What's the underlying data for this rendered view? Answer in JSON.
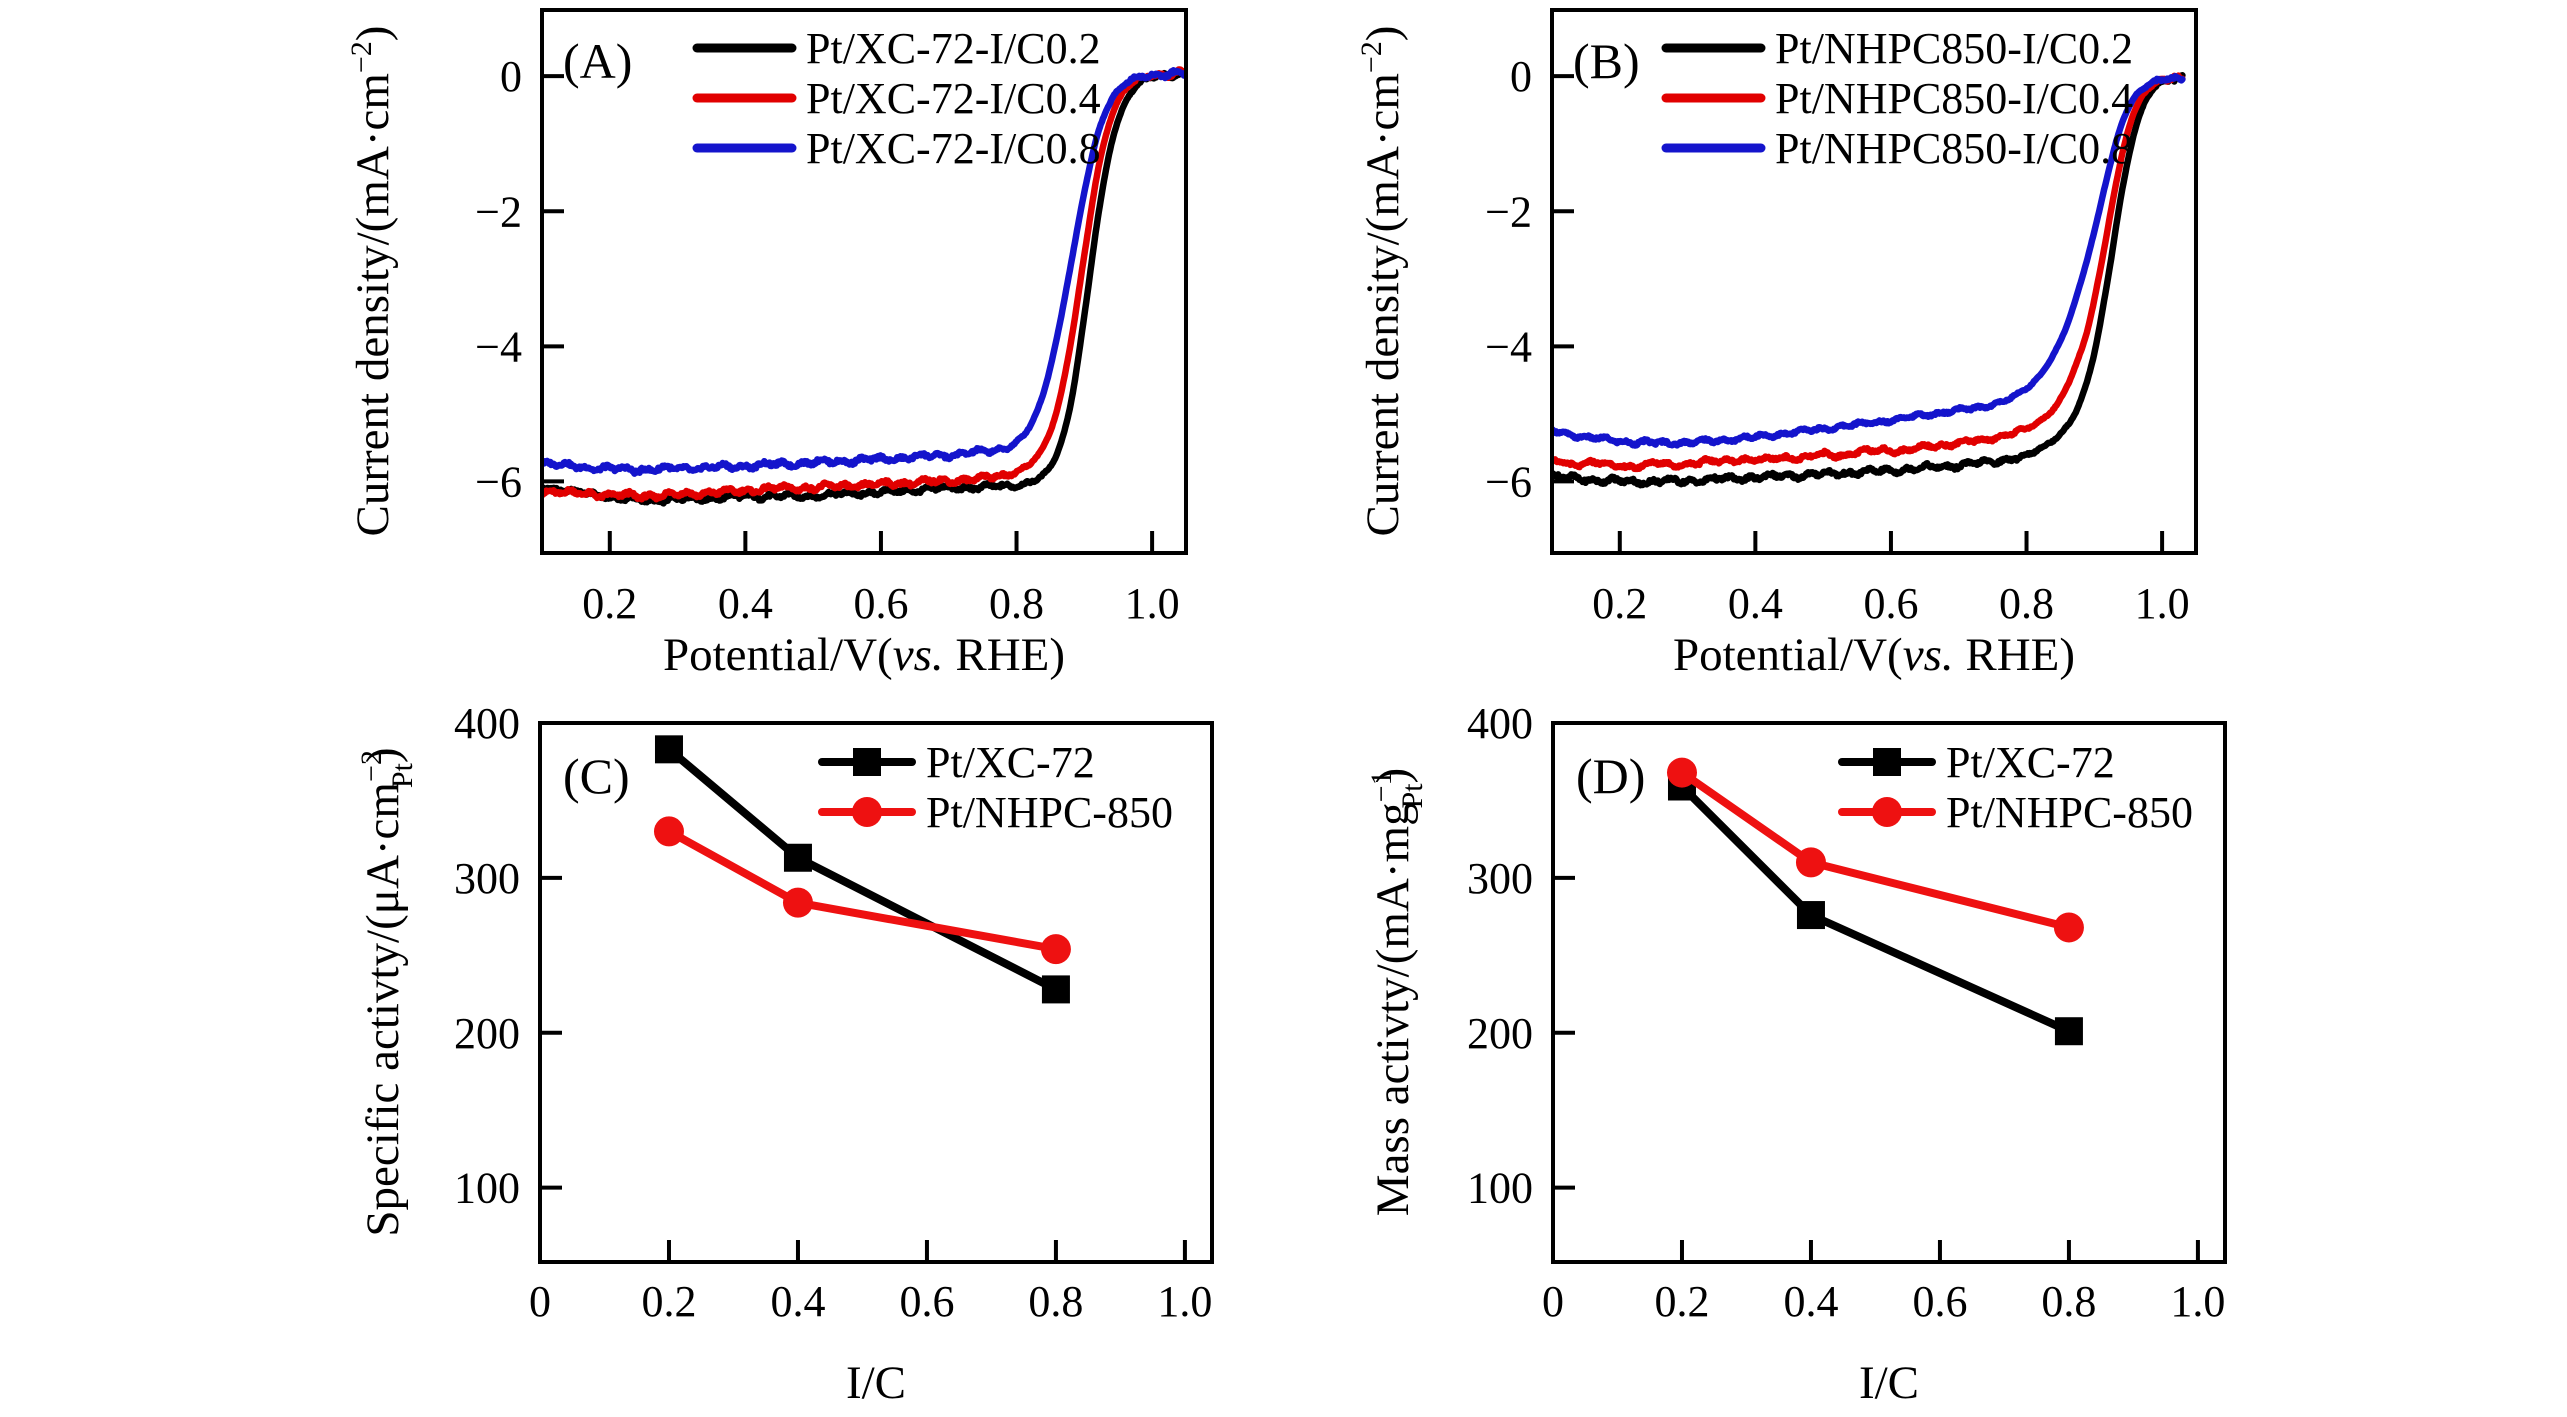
{
  "figure": {
    "background": "#ffffff",
    "description_colors": {
      "black": "#000000",
      "red_curve": "#e10000",
      "blue_curve": "#1414cc",
      "red_marker": "#ee1111"
    }
  },
  "chart_data": [
    {
      "id": "A",
      "type": "line",
      "panel_label": "(A)",
      "xlabel_parts": [
        {
          "t": "Potential/V("
        },
        {
          "t": "vs.",
          "style": "italic"
        },
        {
          "t": " RHE)"
        }
      ],
      "ylabel_parts": [
        {
          "t": "Current density/(mA·cm"
        },
        {
          "t": "−2",
          "style": "sup"
        },
        {
          "t": ")"
        }
      ],
      "xlim": [
        0.1,
        1.05
      ],
      "ylim": [
        -7.06,
        0.98
      ],
      "xticks": [
        0.2,
        0.4,
        0.6,
        0.8,
        1.0
      ],
      "xtick_labels": [
        "0.2",
        "0.4",
        "0.6",
        "0.8",
        "1.0"
      ],
      "yticks": [
        0,
        -2,
        -4,
        -6
      ],
      "ytick_labels": [
        "0",
        "−2",
        "−4",
        "−6"
      ],
      "grid": false,
      "legend_position": "top-left-inside",
      "series": [
        {
          "name": "Pt/XC-72-I/C0.2",
          "color": "#000000",
          "marker": "none",
          "noise": 0.045,
          "seed": 1,
          "points": [
            [
              0.1,
              -6.08
            ],
            [
              0.14,
              -6.14
            ],
            [
              0.18,
              -6.2
            ],
            [
              0.22,
              -6.26
            ],
            [
              0.26,
              -6.28
            ],
            [
              0.3,
              -6.26
            ],
            [
              0.34,
              -6.25
            ],
            [
              0.38,
              -6.23
            ],
            [
              0.42,
              -6.22
            ],
            [
              0.46,
              -6.22
            ],
            [
              0.5,
              -6.21
            ],
            [
              0.54,
              -6.19
            ],
            [
              0.58,
              -6.17
            ],
            [
              0.62,
              -6.15
            ],
            [
              0.66,
              -6.12
            ],
            [
              0.7,
              -6.1
            ],
            [
              0.74,
              -6.09
            ],
            [
              0.78,
              -6.07
            ],
            [
              0.8,
              -6.05
            ],
            [
              0.82,
              -6.01
            ],
            [
              0.84,
              -5.9
            ],
            [
              0.86,
              -5.58
            ],
            [
              0.88,
              -4.85
            ],
            [
              0.9,
              -3.55
            ],
            [
              0.92,
              -2.1
            ],
            [
              0.94,
              -1.0
            ],
            [
              0.96,
              -0.4
            ],
            [
              0.98,
              -0.12
            ],
            [
              1.0,
              -0.02
            ],
            [
              1.02,
              0.02
            ],
            [
              1.05,
              0.04
            ]
          ]
        },
        {
          "name": "Pt/XC-72-I/C0.4",
          "color": "#e10000",
          "marker": "none",
          "noise": 0.05,
          "seed": 2,
          "points": [
            [
              0.1,
              -6.14
            ],
            [
              0.14,
              -6.17
            ],
            [
              0.18,
              -6.19
            ],
            [
              0.22,
              -6.21
            ],
            [
              0.26,
              -6.21
            ],
            [
              0.3,
              -6.19
            ],
            [
              0.34,
              -6.17
            ],
            [
              0.38,
              -6.15
            ],
            [
              0.42,
              -6.12
            ],
            [
              0.46,
              -6.1
            ],
            [
              0.5,
              -6.09
            ],
            [
              0.54,
              -6.07
            ],
            [
              0.58,
              -6.05
            ],
            [
              0.62,
              -6.03
            ],
            [
              0.66,
              -6.01
            ],
            [
              0.7,
              -5.99
            ],
            [
              0.74,
              -5.96
            ],
            [
              0.78,
              -5.91
            ],
            [
              0.8,
              -5.85
            ],
            [
              0.82,
              -5.74
            ],
            [
              0.84,
              -5.48
            ],
            [
              0.86,
              -4.93
            ],
            [
              0.88,
              -3.95
            ],
            [
              0.9,
              -2.65
            ],
            [
              0.92,
              -1.4
            ],
            [
              0.94,
              -0.6
            ],
            [
              0.96,
              -0.2
            ],
            [
              0.98,
              -0.05
            ],
            [
              1.0,
              0.01
            ],
            [
              1.02,
              0.03
            ],
            [
              1.05,
              0.05
            ]
          ]
        },
        {
          "name": "Pt/XC-72-I/C0.8",
          "color": "#1414cc",
          "marker": "none",
          "noise": 0.05,
          "seed": 3,
          "points": [
            [
              0.1,
              -5.72
            ],
            [
              0.14,
              -5.77
            ],
            [
              0.18,
              -5.8
            ],
            [
              0.22,
              -5.82
            ],
            [
              0.26,
              -5.82
            ],
            [
              0.3,
              -5.81
            ],
            [
              0.34,
              -5.8
            ],
            [
              0.38,
              -5.78
            ],
            [
              0.42,
              -5.76
            ],
            [
              0.46,
              -5.74
            ],
            [
              0.5,
              -5.72
            ],
            [
              0.54,
              -5.7
            ],
            [
              0.58,
              -5.68
            ],
            [
              0.62,
              -5.66
            ],
            [
              0.66,
              -5.63
            ],
            [
              0.7,
              -5.61
            ],
            [
              0.74,
              -5.57
            ],
            [
              0.78,
              -5.51
            ],
            [
              0.8,
              -5.42
            ],
            [
              0.82,
              -5.18
            ],
            [
              0.84,
              -4.68
            ],
            [
              0.86,
              -3.85
            ],
            [
              0.88,
              -2.8
            ],
            [
              0.9,
              -1.72
            ],
            [
              0.92,
              -0.85
            ],
            [
              0.94,
              -0.35
            ],
            [
              0.96,
              -0.12
            ],
            [
              0.98,
              -0.02
            ],
            [
              1.0,
              0.02
            ],
            [
              1.02,
              0.03
            ],
            [
              1.05,
              0.04
            ]
          ]
        }
      ]
    },
    {
      "id": "B",
      "type": "line",
      "panel_label": "(B)",
      "xlabel_parts": [
        {
          "t": "Potential/V("
        },
        {
          "t": "vs.",
          "style": "italic"
        },
        {
          "t": " RHE)"
        }
      ],
      "ylabel_parts": [
        {
          "t": "Current density/(mA·cm"
        },
        {
          "t": "−2",
          "style": "sup"
        },
        {
          "t": ")"
        }
      ],
      "xlim": [
        0.1,
        1.05
      ],
      "ylim": [
        -7.06,
        0.98
      ],
      "xticks": [
        0.2,
        0.4,
        0.6,
        0.8,
        1.0
      ],
      "xtick_labels": [
        "0.2",
        "0.4",
        "0.6",
        "0.8",
        "1.0"
      ],
      "yticks": [
        0,
        -2,
        -4,
        -6
      ],
      "ytick_labels": [
        "0",
        "−2",
        "−4",
        "−6"
      ],
      "grid": false,
      "legend_position": "top-left-inside",
      "series": [
        {
          "name": "Pt/NHPC850-I/C0.2",
          "color": "#000000",
          "marker": "none",
          "noise": 0.05,
          "seed": 4,
          "points": [
            [
              0.1,
              -5.92
            ],
            [
              0.14,
              -5.96
            ],
            [
              0.18,
              -5.99
            ],
            [
              0.22,
              -6.0
            ],
            [
              0.26,
              -6.0
            ],
            [
              0.3,
              -5.99
            ],
            [
              0.34,
              -5.97
            ],
            [
              0.38,
              -5.95
            ],
            [
              0.42,
              -5.93
            ],
            [
              0.46,
              -5.91
            ],
            [
              0.5,
              -5.89
            ],
            [
              0.54,
              -5.87
            ],
            [
              0.58,
              -5.85
            ],
            [
              0.62,
              -5.82
            ],
            [
              0.66,
              -5.79
            ],
            [
              0.7,
              -5.76
            ],
            [
              0.74,
              -5.72
            ],
            [
              0.78,
              -5.66
            ],
            [
              0.8,
              -5.62
            ],
            [
              0.83,
              -5.45
            ],
            [
              0.86,
              -5.18
            ],
            [
              0.88,
              -4.8
            ],
            [
              0.9,
              -4.1
            ],
            [
              0.92,
              -3.0
            ],
            [
              0.94,
              -1.75
            ],
            [
              0.96,
              -0.8
            ],
            [
              0.98,
              -0.28
            ],
            [
              1.0,
              -0.08
            ],
            [
              1.03,
              -0.04
            ]
          ]
        },
        {
          "name": "Pt/NHPC850-I/C0.4",
          "color": "#e10000",
          "marker": "none",
          "noise": 0.045,
          "seed": 5,
          "points": [
            [
              0.1,
              -5.68
            ],
            [
              0.13,
              -5.76
            ],
            [
              0.16,
              -5.71
            ],
            [
              0.19,
              -5.77
            ],
            [
              0.22,
              -5.78
            ],
            [
              0.25,
              -5.73
            ],
            [
              0.28,
              -5.76
            ],
            [
              0.31,
              -5.72
            ],
            [
              0.34,
              -5.71
            ],
            [
              0.38,
              -5.67
            ],
            [
              0.41,
              -5.69
            ],
            [
              0.44,
              -5.64
            ],
            [
              0.47,
              -5.66
            ],
            [
              0.5,
              -5.6
            ],
            [
              0.53,
              -5.61
            ],
            [
              0.56,
              -5.56
            ],
            [
              0.59,
              -5.53
            ],
            [
              0.62,
              -5.55
            ],
            [
              0.65,
              -5.48
            ],
            [
              0.68,
              -5.46
            ],
            [
              0.71,
              -5.42
            ],
            [
              0.74,
              -5.38
            ],
            [
              0.77,
              -5.31
            ],
            [
              0.8,
              -5.22
            ],
            [
              0.83,
              -5.02
            ],
            [
              0.85,
              -4.78
            ],
            [
              0.87,
              -4.35
            ],
            [
              0.89,
              -3.75
            ],
            [
              0.91,
              -2.8
            ],
            [
              0.93,
              -1.7
            ],
            [
              0.95,
              -0.8
            ],
            [
              0.97,
              -0.3
            ],
            [
              0.99,
              -0.1
            ],
            [
              1.01,
              -0.05
            ],
            [
              1.03,
              -0.04
            ]
          ]
        },
        {
          "name": "Pt/NHPC850-I/C0.8",
          "color": "#1414cc",
          "marker": "none",
          "noise": 0.04,
          "seed": 6,
          "points": [
            [
              0.1,
              -5.25
            ],
            [
              0.14,
              -5.33
            ],
            [
              0.18,
              -5.38
            ],
            [
              0.22,
              -5.42
            ],
            [
              0.26,
              -5.43
            ],
            [
              0.3,
              -5.42
            ],
            [
              0.34,
              -5.4
            ],
            [
              0.38,
              -5.36
            ],
            [
              0.42,
              -5.32
            ],
            [
              0.46,
              -5.27
            ],
            [
              0.5,
              -5.22
            ],
            [
              0.54,
              -5.17
            ],
            [
              0.58,
              -5.12
            ],
            [
              0.62,
              -5.06
            ],
            [
              0.66,
              -5.0
            ],
            [
              0.7,
              -4.95
            ],
            [
              0.74,
              -4.88
            ],
            [
              0.77,
              -4.8
            ],
            [
              0.8,
              -4.62
            ],
            [
              0.82,
              -4.42
            ],
            [
              0.84,
              -4.12
            ],
            [
              0.86,
              -3.68
            ],
            [
              0.88,
              -3.05
            ],
            [
              0.9,
              -2.3
            ],
            [
              0.92,
              -1.45
            ],
            [
              0.94,
              -0.72
            ],
            [
              0.96,
              -0.3
            ],
            [
              0.98,
              -0.12
            ],
            [
              1.0,
              -0.06
            ],
            [
              1.03,
              -0.04
            ]
          ]
        }
      ]
    },
    {
      "id": "C",
      "type": "scatter-line",
      "panel_label": "(C)",
      "xlabel_parts": [
        {
          "t": "I/C"
        }
      ],
      "ylabel_parts": [
        {
          "t": "Specific activty/(μA·cm"
        },
        {
          "t": "−2",
          "style": "sup"
        },
        {
          "t": "Pt",
          "style": "substack"
        },
        {
          "t": ")"
        }
      ],
      "xlim": [
        0,
        1.042
      ],
      "ylim": [
        52,
        400
      ],
      "xticks": [
        0,
        0.2,
        0.4,
        0.6,
        0.8,
        1.0
      ],
      "xtick_labels": [
        "0",
        "0.2",
        "0.4",
        "0.6",
        "0.8",
        "1.0"
      ],
      "yticks": [
        400,
        300,
        200,
        100
      ],
      "ytick_labels": [
        "400",
        "300",
        "200",
        "100"
      ],
      "grid": false,
      "legend_position": "top-right-inside",
      "series": [
        {
          "name": "Pt/XC-72",
          "color": "#000000",
          "marker": "square",
          "points": [
            [
              0.2,
              383
            ],
            [
              0.4,
              313
            ],
            [
              0.8,
              228
            ]
          ]
        },
        {
          "name": "Pt/NHPC-850",
          "color": "#ee1111",
          "marker": "circle",
          "points": [
            [
              0.2,
              330
            ],
            [
              0.4,
              284
            ],
            [
              0.8,
              254
            ]
          ]
        }
      ]
    },
    {
      "id": "D",
      "type": "scatter-line",
      "panel_label": "(D)",
      "xlabel_parts": [
        {
          "t": "I/C"
        }
      ],
      "ylabel_parts": [
        {
          "t": "Mass activty/(mA·mg"
        },
        {
          "t": "−1",
          "style": "sup"
        },
        {
          "t": "Pt",
          "style": "substack"
        },
        {
          "t": ")"
        }
      ],
      "xlim": [
        0,
        1.042
      ],
      "ylim": [
        52,
        400
      ],
      "xticks": [
        0,
        0.2,
        0.4,
        0.6,
        0.8,
        1.0
      ],
      "xtick_labels": [
        "0",
        "0.2",
        "0.4",
        "0.6",
        "0.8",
        "1.0"
      ],
      "yticks": [
        400,
        300,
        200,
        100
      ],
      "ytick_labels": [
        "400",
        "300",
        "200",
        "100"
      ],
      "grid": false,
      "legend_position": "top-right-inside",
      "series": [
        {
          "name": "Pt/XC-72",
          "color": "#000000",
          "marker": "square",
          "points": [
            [
              0.2,
              359
            ],
            [
              0.4,
              276
            ],
            [
              0.8,
              201
            ]
          ]
        },
        {
          "name": "Pt/NHPC-850",
          "color": "#ee1111",
          "marker": "circle",
          "points": [
            [
              0.2,
              368
            ],
            [
              0.4,
              310
            ],
            [
              0.8,
              268
            ]
          ]
        }
      ]
    }
  ]
}
